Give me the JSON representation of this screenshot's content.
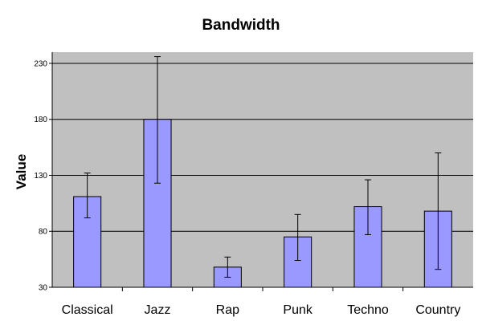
{
  "chart_data": {
    "type": "bar",
    "title": "Bandwidth",
    "xlabel": "",
    "ylabel": "Value",
    "categories": [
      "Classical",
      "Jazz",
      "Rap",
      "Punk",
      "Techno",
      "Country"
    ],
    "values": [
      111,
      180,
      48,
      75,
      102,
      98
    ],
    "error_low": [
      92,
      123,
      39,
      54,
      77,
      46
    ],
    "error_high": [
      132,
      236,
      57,
      95,
      126,
      150
    ],
    "ylim": [
      30,
      240
    ],
    "yticks": [
      30,
      80,
      130,
      180,
      230
    ],
    "grid": true,
    "legend": "none",
    "colors": {
      "plot_background": "#c0c0c0",
      "bar_fill": "#9999ff",
      "bar_stroke": "#000000",
      "gridline": "#000000"
    }
  }
}
